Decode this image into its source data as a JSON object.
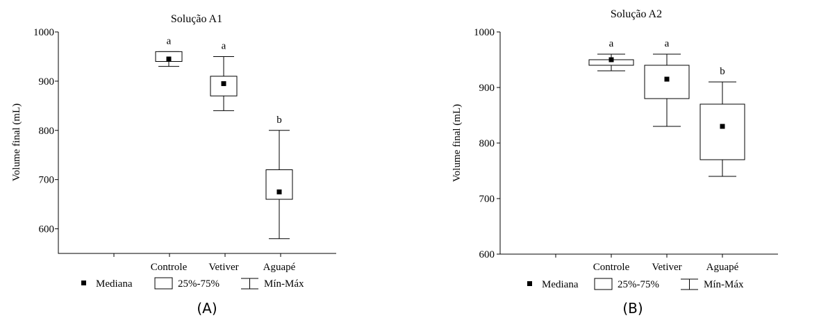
{
  "legend": {
    "median_label": "Mediana",
    "iqr_label": "25%-75%",
    "range_label": "Mín-Máx"
  },
  "chart_data": [
    {
      "type": "box",
      "title": "Solução A1",
      "panel_label": "(A)",
      "ylabel": "Volume final (mL)",
      "xlabel": "",
      "ylim": [
        550,
        1000
      ],
      "yticks": [
        600,
        700,
        800,
        900,
        1000
      ],
      "legend_position": "bottom",
      "categories": [
        "Controle",
        "Vetiver",
        "Aguapé"
      ],
      "boxes": [
        {
          "category": "Controle",
          "min": 930,
          "q1": 940,
          "median": 945,
          "q3": 960,
          "max": 960,
          "group": "a"
        },
        {
          "category": "Vetiver",
          "min": 840,
          "q1": 870,
          "median": 895,
          "q3": 910,
          "max": 950,
          "group": "a"
        },
        {
          "category": "Aguapé",
          "min": 580,
          "q1": 660,
          "median": 675,
          "q3": 720,
          "max": 800,
          "group": "b"
        }
      ]
    },
    {
      "type": "box",
      "title": "Solução A2",
      "panel_label": "(B)",
      "ylabel": "Volume final (mL)",
      "xlabel": "",
      "ylim": [
        600,
        1000
      ],
      "yticks": [
        600,
        700,
        800,
        900,
        1000
      ],
      "legend_position": "bottom",
      "categories": [
        "Controle",
        "Vetiver",
        "Aguapé"
      ],
      "boxes": [
        {
          "category": "Controle",
          "min": 930,
          "q1": 940,
          "median": 950,
          "q3": 950,
          "max": 960,
          "group": "a"
        },
        {
          "category": "Vetiver",
          "min": 830,
          "q1": 880,
          "median": 915,
          "q3": 940,
          "max": 960,
          "group": "a"
        },
        {
          "category": "Aguapé",
          "min": 740,
          "q1": 770,
          "median": 830,
          "q3": 870,
          "max": 910,
          "group": "b"
        }
      ]
    }
  ]
}
